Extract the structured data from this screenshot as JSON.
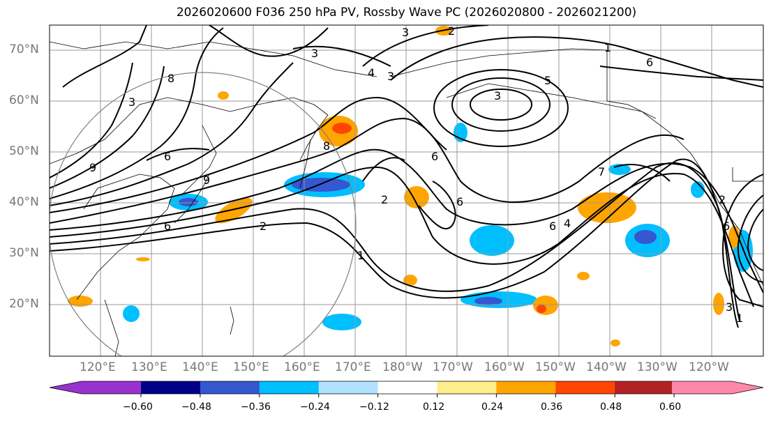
{
  "title": "2026020600 F036 250 hPa PV, Rossby Wave PC (2026020800 - 2026021200)",
  "lat_labels": [
    "70°N",
    "60°N",
    "50°N",
    "40°N",
    "30°N",
    "20°N"
  ],
  "lon_labels": [
    "120°E",
    "130°E",
    "140°E",
    "150°E",
    "160°E",
    "170°E",
    "180°W",
    "170°W",
    "160°W",
    "150°W",
    "140°W",
    "130°W",
    "120°W"
  ],
  "contour_labels": [
    "3",
    "2",
    "3",
    "4",
    "3",
    "5",
    "6",
    "3",
    "8",
    "3",
    "8",
    "9",
    "6",
    "6",
    "6",
    "2",
    "2",
    "6",
    "9",
    "2",
    "1",
    "7",
    "6",
    "4",
    "3",
    "6",
    "1",
    "1"
  ],
  "colorbar": {
    "ticks": [
      "−0.60",
      "−0.48",
      "−0.36",
      "−0.24",
      "−0.12",
      "0.12",
      "0.24",
      "0.36",
      "0.48",
      "0.60"
    ],
    "colors": [
      "#9932cc",
      "#00008b",
      "#3557d0",
      "#00bfff",
      "#b0e2ff",
      "#ffffff",
      "#ffec8b",
      "#ffa500",
      "#ff4500",
      "#b22222",
      "#ff88aa"
    ]
  },
  "colors": {
    "grid": "#999999",
    "land": "#000000",
    "contour": "#000000",
    "circle": "#808080"
  }
}
